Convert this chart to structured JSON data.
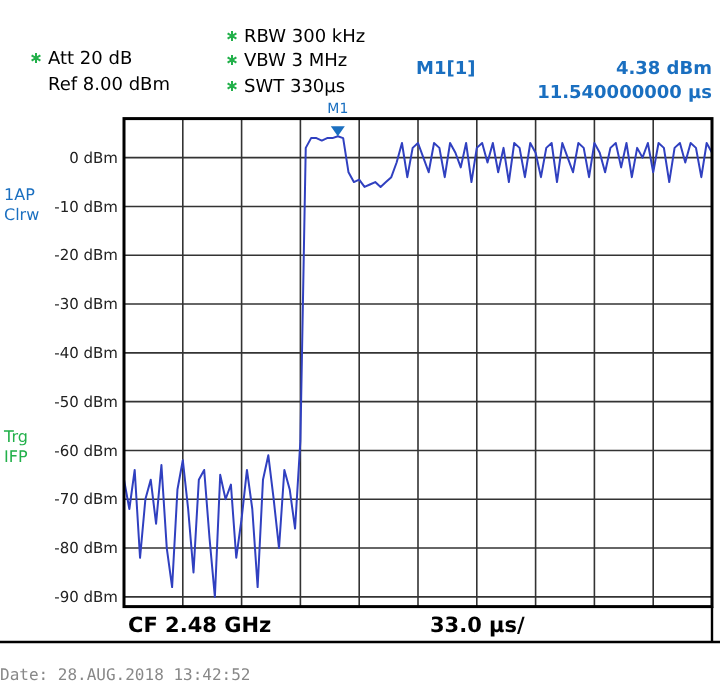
{
  "chart_data": {
    "type": "line",
    "tick_labels": "y",
    "grid": true,
    "line_style": "solid",
    "categories": [
      null,
      null,
      null,
      null,
      null,
      null,
      null,
      null,
      null,
      null,
      null,
      null,
      null,
      null,
      null,
      null,
      null,
      null,
      null,
      null,
      null,
      null,
      null,
      null,
      null,
      null,
      null,
      null,
      null,
      null,
      null,
      null,
      null,
      null,
      null,
      null,
      null,
      null,
      null,
      null,
      null,
      null,
      null,
      null,
      null,
      null,
      null,
      null,
      null,
      null,
      null,
      null,
      null,
      null,
      null,
      null,
      null,
      null,
      null,
      null,
      null,
      null,
      null,
      null,
      null,
      null,
      null,
      null,
      null,
      null,
      null,
      null,
      null,
      null,
      null,
      null,
      null,
      null,
      null,
      null,
      null,
      null,
      null,
      null,
      null,
      null,
      null,
      null,
      null,
      null,
      null,
      null,
      null,
      null,
      null,
      null,
      null,
      null,
      null,
      null,
      null,
      null,
      null,
      null,
      null,
      null,
      null,
      null,
      null,
      null,
      null
    ],
    "ylim": [
      -92,
      8
    ],
    "yticks": [
      {
        "value": 0,
        "label": "0 dBm"
      },
      {
        "value": -10,
        "label": "-10 dBm"
      },
      {
        "value": -20,
        "label": "-20 dBm"
      },
      {
        "value": -30,
        "label": "-30 dBm"
      },
      {
        "value": -40,
        "label": "-40 dBm"
      },
      {
        "value": -50,
        "label": "-50 dBm"
      },
      {
        "value": -60,
        "label": "-60 dBm"
      },
      {
        "value": -70,
        "label": "-70 dBm"
      },
      {
        "value": -80,
        "label": "-80 dBm"
      },
      {
        "value": -90,
        "label": "-90 dBm"
      }
    ],
    "series": [
      {
        "color": "#3040c0",
        "values": [
          -66,
          -72,
          -64,
          -82,
          -70,
          -66,
          -75,
          -63,
          -80,
          -88,
          -68,
          -62,
          -72,
          -85,
          -66,
          -64,
          -78,
          -90,
          -65,
          -70,
          -67,
          -82,
          -74,
          -64,
          -72,
          -88,
          -66,
          -61,
          -70,
          -80,
          -64,
          -68,
          -76,
          -58,
          2,
          4,
          4,
          3.5,
          4,
          4,
          4.38,
          4,
          -3,
          -5,
          -4.5,
          -6,
          -5.5,
          -5,
          -6,
          -5,
          -4,
          -1,
          3,
          -4,
          2,
          3,
          0,
          -3,
          3,
          2,
          -4,
          3,
          1,
          -2,
          3,
          -5,
          2,
          3,
          -1,
          3,
          -3,
          2,
          -5,
          3,
          2,
          -4,
          3,
          1,
          -4,
          2,
          3,
          -5,
          3,
          0,
          -3,
          3,
          2,
          -4,
          3,
          1,
          -3,
          2,
          3,
          -2,
          3,
          -4,
          2,
          0,
          3,
          -3,
          3,
          2,
          -5,
          2,
          3,
          -1,
          3,
          2,
          -4,
          3,
          1
        ]
      }
    ],
    "annotations": [
      "Att 20 dB",
      "Ref 8.00 dBm",
      "RBW 300 kHz",
      "VBW 3 MHz",
      "SWT 330µs",
      "M1[1]",
      "4.38 dBm",
      "11.540000000 µs",
      "1AP",
      "Clrw",
      "Trg",
      "IFP",
      "CF 2.48 GHz",
      "33.0 µs/",
      "Date: 28.AUG.2018 13:42:52",
      {
        "text": "M1",
        "y": 4.38
      }
    ]
  }
}
